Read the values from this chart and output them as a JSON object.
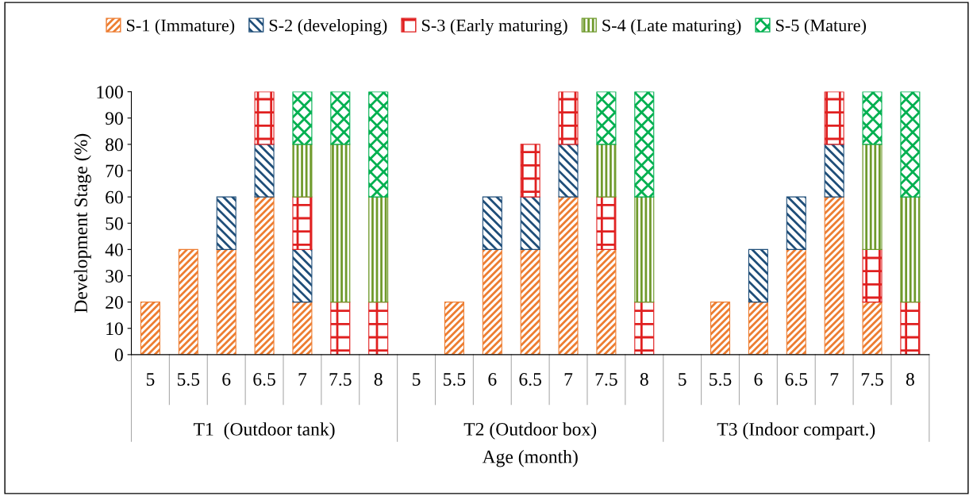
{
  "chart_data": {
    "type": "bar",
    "stacked": true,
    "xlabel": "Age (month)",
    "ylabel": "Development Stage (%)",
    "categories": [
      "5",
      "5.5",
      "6",
      "6.5",
      "7",
      "7.5",
      "8",
      "5",
      "5.5",
      "6",
      "6.5",
      "7",
      "7.5",
      "8",
      "5",
      "5.5",
      "6",
      "6.5",
      "7",
      "7.5",
      "8"
    ],
    "annotations": [
      "T1  (Outdoor tank)",
      "T2 (Outdoor box)",
      "T3 (Indoor compart.)"
    ],
    "series": [
      {
        "name": "S-1 (Immature)",
        "color": "#ed7d31",
        "values": [
          20,
          40,
          40,
          60,
          20,
          null,
          null,
          null,
          20,
          40,
          40,
          60,
          40,
          null,
          null,
          20,
          20,
          40,
          60,
          20,
          null
        ]
      },
      {
        "name": "S-2 (developing)",
        "color": "#1f4e79",
        "values": [
          null,
          null,
          20,
          20,
          20,
          null,
          null,
          null,
          null,
          20,
          20,
          20,
          null,
          null,
          null,
          null,
          20,
          20,
          20,
          null,
          null
        ]
      },
      {
        "name": "S-3 (Early maturing)",
        "color": "#e02020",
        "values": [
          null,
          null,
          null,
          20,
          20,
          20,
          20,
          null,
          null,
          null,
          20,
          20,
          20,
          20,
          null,
          null,
          null,
          null,
          20,
          20,
          20
        ]
      },
      {
        "name": "S-4 (Late maturing)",
        "color": "#6f9a2c",
        "values": [
          null,
          null,
          null,
          null,
          20,
          60,
          40,
          null,
          null,
          null,
          null,
          null,
          20,
          40,
          null,
          null,
          null,
          null,
          null,
          40,
          40
        ]
      },
      {
        "name": "S-5 (Mature)",
        "color": "#00b050",
        "values": [
          null,
          null,
          null,
          null,
          20,
          20,
          40,
          null,
          null,
          null,
          null,
          null,
          20,
          40,
          null,
          null,
          null,
          null,
          null,
          20,
          40
        ]
      }
    ],
    "ylim": [
      0,
      100
    ],
    "yticks": [
      0,
      10,
      20,
      30,
      40,
      50,
      60,
      70,
      80,
      90,
      100
    ],
    "grid": false,
    "legend": "top"
  }
}
